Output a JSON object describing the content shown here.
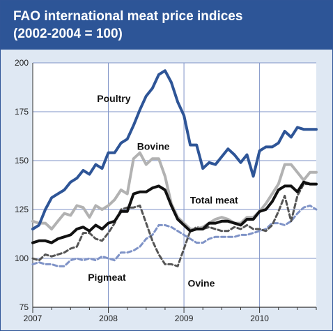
{
  "header": {
    "title_line1": "FAO international meat price indices",
    "title_line2": "(2002-2004 = 100)"
  },
  "chart_data": {
    "type": "line",
    "title": "FAO international meat price indices (2002-2004 = 100)",
    "xlabel": "",
    "ylabel": "",
    "ylim": [
      75,
      200
    ],
    "yticks": [
      75,
      100,
      125,
      150,
      175,
      200
    ],
    "xlim": [
      2007.0,
      2010.75
    ],
    "xticks": [
      "2007",
      "2008",
      "2009",
      "2010"
    ],
    "grid": true,
    "x": [
      2007.0,
      2007.083,
      2007.167,
      2007.25,
      2007.333,
      2007.417,
      2007.5,
      2007.583,
      2007.667,
      2007.75,
      2007.833,
      2007.917,
      2008.0,
      2008.083,
      2008.167,
      2008.25,
      2008.333,
      2008.417,
      2008.5,
      2008.583,
      2008.667,
      2008.75,
      2008.833,
      2008.917,
      2009.0,
      2009.083,
      2009.167,
      2009.25,
      2009.333,
      2009.417,
      2009.5,
      2009.583,
      2009.667,
      2009.75,
      2009.833,
      2009.917,
      2010.0,
      2010.083,
      2010.167,
      2010.25,
      2010.333,
      2010.417,
      2010.5,
      2010.583,
      2010.667,
      2010.75
    ],
    "series": [
      {
        "name": "Poultry",
        "color": "#2e5597",
        "style": "solid",
        "width": 4,
        "values": [
          115,
          117,
          125,
          131,
          133,
          135,
          139,
          141,
          145,
          143,
          148,
          146,
          154,
          154,
          159,
          161,
          168,
          176,
          183,
          187,
          194,
          196,
          190,
          180,
          173,
          158,
          158,
          146,
          149,
          148,
          152,
          156,
          153,
          149,
          153,
          142,
          155,
          157,
          157,
          159,
          165,
          162,
          167,
          166,
          166,
          166
        ]
      },
      {
        "name": "Bovine",
        "color": "#b2b2b2",
        "style": "solid",
        "width": 4,
        "values": [
          119,
          118,
          118,
          115,
          119,
          123,
          122,
          127,
          126,
          121,
          127,
          125,
          127,
          130,
          135,
          133,
          151,
          154,
          148,
          151,
          151,
          142,
          128,
          121,
          118,
          115,
          115,
          116,
          118,
          120,
          121,
          120,
          118,
          118,
          121,
          121,
          124,
          128,
          133,
          138,
          148,
          148,
          144,
          140,
          144,
          144
        ]
      },
      {
        "name": "Total meat",
        "color": "#111111",
        "style": "solid",
        "width": 4,
        "values": [
          108,
          109,
          109,
          108,
          110,
          111,
          112,
          115,
          116,
          114,
          117,
          115,
          118,
          119,
          124,
          124,
          133,
          134,
          134,
          136,
          137,
          135,
          127,
          120,
          117,
          114,
          115,
          115,
          118,
          118,
          119,
          119,
          118,
          117,
          120,
          120,
          124,
          125,
          129,
          135,
          137,
          137,
          134,
          139,
          138,
          138
        ]
      },
      {
        "name": "Ovine",
        "color": "#555555",
        "style": "dashed",
        "width": 3,
        "values": [
          100,
          99,
          102,
          101,
          102,
          103,
          105,
          106,
          113,
          113,
          110,
          109,
          113,
          118,
          125,
          126,
          126,
          127,
          118,
          109,
          102,
          97,
          97,
          96,
          105,
          114,
          116,
          115,
          116,
          115,
          114,
          114,
          116,
          115,
          117,
          115,
          115,
          114,
          117,
          124,
          132,
          119,
          132,
          138,
          138,
          138
        ]
      },
      {
        "name": "Pigmeat",
        "color": "#7f93c7",
        "style": "dashed",
        "width": 3,
        "values": [
          97,
          98,
          97,
          97,
          96,
          96,
          99,
          100,
          99,
          100,
          99,
          101,
          100,
          99,
          103,
          103,
          104,
          106,
          110,
          112,
          117,
          117,
          116,
          114,
          112,
          110,
          108,
          108,
          110,
          111,
          111,
          111,
          111,
          112,
          112,
          113,
          114,
          115,
          118,
          118,
          117,
          119,
          123,
          126,
          127,
          125
        ]
      }
    ],
    "series_labels": [
      "Poultry",
      "Bovine",
      "Total meat",
      "Ovine",
      "Pigmeat"
    ],
    "colors": {
      "header": "#2d5597",
      "background": "#dfe8f3",
      "poultry": "#2e5597",
      "bovine": "#b2b2b2",
      "total_meat": "#111111",
      "ovine": "#555555",
      "pigmeat": "#7f93c7"
    }
  }
}
